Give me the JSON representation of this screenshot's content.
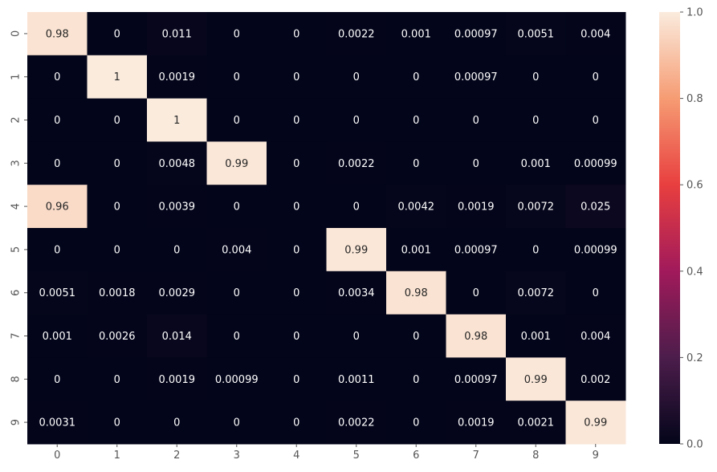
{
  "chart_data": {
    "type": "heatmap",
    "title": "",
    "xlabel": "",
    "ylabel": "",
    "x_tick_labels": [
      "0",
      "1",
      "2",
      "3",
      "4",
      "5",
      "6",
      "7",
      "8",
      "9"
    ],
    "y_tick_labels": [
      "0",
      "1",
      "2",
      "3",
      "4",
      "5",
      "6",
      "7",
      "8",
      "9"
    ],
    "values": [
      [
        0.98,
        0,
        0.011,
        0,
        0,
        0.0022,
        0.001,
        0.00097,
        0.0051,
        0.004
      ],
      [
        0,
        1,
        0.0019,
        0,
        0,
        0,
        0,
        0.00097,
        0,
        0
      ],
      [
        0,
        0,
        1,
        0,
        0,
        0,
        0,
        0,
        0,
        0
      ],
      [
        0,
        0,
        0.0048,
        0.99,
        0,
        0.0022,
        0,
        0,
        0.001,
        0.00099
      ],
      [
        0.96,
        0,
        0.0039,
        0,
        0,
        0,
        0.0042,
        0.0019,
        0.0072,
        0.025
      ],
      [
        0,
        0,
        0,
        0.004,
        0,
        0.99,
        0.001,
        0.00097,
        0,
        0.00099
      ],
      [
        0.0051,
        0.0018,
        0.0029,
        0,
        0,
        0.0034,
        0.98,
        0,
        0.0072,
        0
      ],
      [
        0.001,
        0.0026,
        0.014,
        0,
        0,
        0,
        0,
        0.98,
        0.001,
        0.004
      ],
      [
        0,
        0,
        0.0019,
        0.00099,
        0,
        0.0011,
        0,
        0.00097,
        0.99,
        0.002
      ],
      [
        0.0031,
        0,
        0,
        0,
        0,
        0.0022,
        0,
        0.0019,
        0.0021,
        0.99
      ]
    ],
    "value_labels": [
      [
        "0.98",
        "0",
        "0.011",
        "0",
        "0",
        "0.0022",
        "0.001",
        "0.00097",
        "0.0051",
        "0.004"
      ],
      [
        "0",
        "1",
        "0.0019",
        "0",
        "0",
        "0",
        "0",
        "0.00097",
        "0",
        "0"
      ],
      [
        "0",
        "0",
        "1",
        "0",
        "0",
        "0",
        "0",
        "0",
        "0",
        "0"
      ],
      [
        "0",
        "0",
        "0.0048",
        "0.99",
        "0",
        "0.0022",
        "0",
        "0",
        "0.001",
        "0.00099"
      ],
      [
        "0.96",
        "0",
        "0.0039",
        "0",
        "0",
        "0",
        "0.0042",
        "0.0019",
        "0.0072",
        "0.025"
      ],
      [
        "0",
        "0",
        "0",
        "0.004",
        "0",
        "0.99",
        "0.001",
        "0.00097",
        "0",
        "0.00099"
      ],
      [
        "0.0051",
        "0.0018",
        "0.0029",
        "0",
        "0",
        "0.0034",
        "0.98",
        "0",
        "0.0072",
        "0"
      ],
      [
        "0.001",
        "0.0026",
        "0.014",
        "0",
        "0",
        "0",
        "0",
        "0.98",
        "0.001",
        "0.004"
      ],
      [
        "0",
        "0",
        "0.0019",
        "0.00099",
        "0",
        "0.0011",
        "0",
        "0.00097",
        "0.99",
        "0.002"
      ],
      [
        "0.0031",
        "0",
        "0",
        "0",
        "0",
        "0.0022",
        "0",
        "0.0019",
        "0.0021",
        "0.99"
      ]
    ],
    "vmin": 0,
    "vmax": 1,
    "colormap": "rocket",
    "colormap_stops": [
      "#03051a",
      "#4c1d4b",
      "#a11a5b",
      "#e83f3f",
      "#f69c73",
      "#faebdd"
    ],
    "light_text_color": "#ffffff",
    "dark_text_color": "#262626",
    "colorbar": {
      "ticks": [
        0,
        0.2,
        0.4,
        0.6,
        0.8,
        1.0
      ],
      "tick_labels": [
        "0.0",
        "0.2",
        "0.4",
        "0.6",
        "0.8",
        "1.0"
      ],
      "position": "right"
    },
    "grid": false
  }
}
